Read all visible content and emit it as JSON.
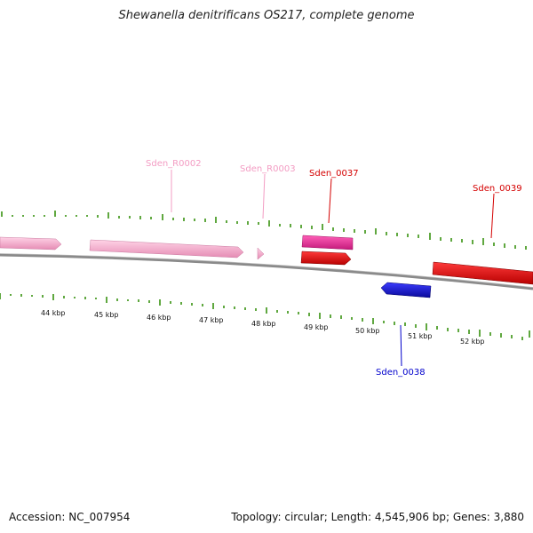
{
  "title": "Shewanella denitrificans OS217, complete genome",
  "footer": {
    "accession": "Accession: NC_007954",
    "topology": "Topology: circular; Length: 4,545,906 bp; Genes: 3,880"
  },
  "scale_labels": [
    "44 kbp",
    "45 kbp",
    "46 kbp",
    "47 kbp",
    "48 kbp",
    "49 kbp",
    "50 kbp",
    "51 kbp",
    "52 kbp"
  ],
  "gene_labels": [
    {
      "id": "Sden_R0002",
      "color": "#f39cc3"
    },
    {
      "id": "Sden_R0003",
      "color": "#f39cc3"
    },
    {
      "id": "Sden_0037",
      "color": "#d40000"
    },
    {
      "id": "Sden_0039",
      "color": "#d40000"
    },
    {
      "id": "Sden_0038",
      "color": "#0000cc"
    }
  ],
  "colors": {
    "rRNA": "#f7a6c9",
    "tRNA": "#e8329a",
    "forward_cds": "#e30000",
    "reverse_cds": "#1a1adc",
    "backbone": "#888888",
    "ticks": "#2a8a00"
  }
}
